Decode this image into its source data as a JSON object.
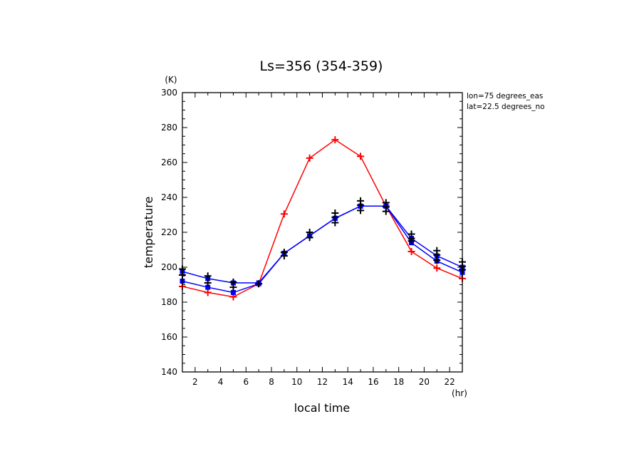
{
  "chart_data": {
    "type": "line",
    "title": "Ls=356 (354-359)",
    "xlabel": "local time",
    "ylabel": "temperature",
    "x_unit": "(hr)",
    "y_unit": "(K)",
    "xlim": [
      1,
      23
    ],
    "ylim": [
      140,
      300
    ],
    "xticks": [
      2,
      4,
      6,
      8,
      10,
      12,
      14,
      16,
      18,
      20,
      22
    ],
    "yticks": [
      140,
      160,
      180,
      200,
      220,
      240,
      260,
      280,
      300
    ],
    "annotations": [
      "lon=75 degrees_eas",
      "lat=22.5 degrees_no"
    ],
    "grid": false,
    "legend": "none",
    "x": [
      1,
      3,
      5,
      7,
      9,
      11,
      13,
      15,
      17,
      19,
      21,
      23
    ],
    "series": [
      {
        "color": "#ff0000",
        "marker": "plus",
        "values": [
          189,
          185.5,
          183,
          190.5,
          230.5,
          262.5,
          273,
          263.5,
          235,
          209,
          199.5,
          193.5
        ]
      },
      {
        "color": "#0000ff",
        "marker": "square",
        "values": [
          192,
          188.5,
          185.5,
          190.5,
          208,
          218,
          228,
          235,
          235,
          214,
          203.5,
          197
        ]
      },
      {
        "color": "#0000ff",
        "marker": "square",
        "values": [
          197.5,
          193.5,
          191,
          191,
          208,
          218,
          228,
          235,
          235,
          216.5,
          206.5,
          200
        ]
      }
    ],
    "observations": [
      {
        "x": 1,
        "y": [
          195.5,
          199
        ]
      },
      {
        "x": 3,
        "y": [
          191,
          195
        ]
      },
      {
        "x": 5,
        "y": [
          188.5,
          191.5
        ]
      },
      {
        "x": 7,
        "y": [
          190.5
        ]
      },
      {
        "x": 9,
        "y": [
          206.5,
          208.5
        ]
      },
      {
        "x": 11,
        "y": [
          217,
          220
        ]
      },
      {
        "x": 13,
        "y": [
          225.5,
          228.5,
          231
        ]
      },
      {
        "x": 15,
        "y": [
          232.5,
          235.5,
          238
        ]
      },
      {
        "x": 17,
        "y": [
          232,
          234.5,
          237
        ]
      },
      {
        "x": 19,
        "y": [
          215,
          216.5,
          219
        ]
      },
      {
        "x": 21,
        "y": [
          204,
          207,
          209.5
        ]
      },
      {
        "x": 23,
        "y": [
          198.5,
          200.5,
          203
        ]
      }
    ]
  }
}
